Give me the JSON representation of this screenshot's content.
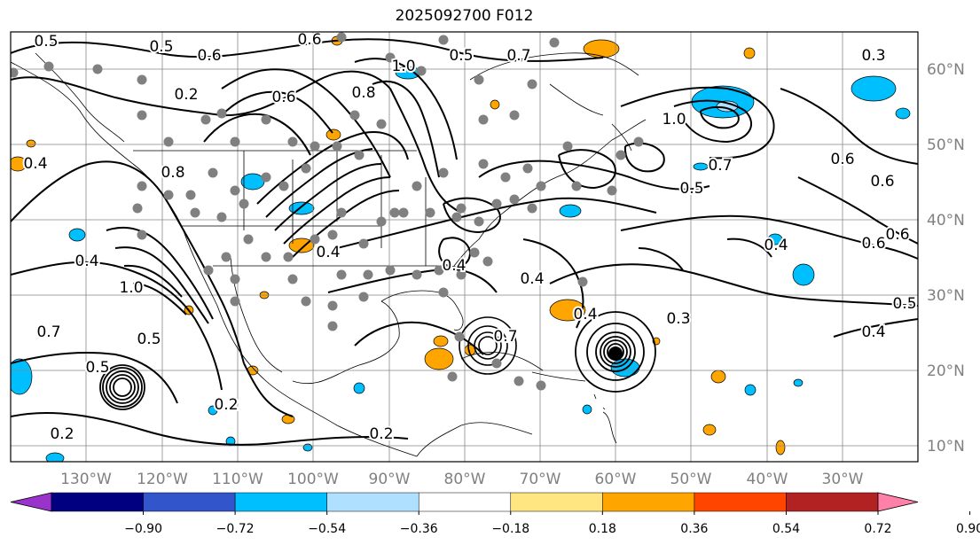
{
  "title": "2025092700 F012",
  "longitude_labels": [
    "130°W",
    "120°W",
    "110°W",
    "100°W",
    "90°W",
    "80°W",
    "70°W",
    "60°W",
    "50°W",
    "40°W",
    "30°W"
  ],
  "latitude_labels": [
    "60°N",
    "50°N",
    "40°N",
    "30°N",
    "20°N",
    "10°N"
  ],
  "colorbar": {
    "ticks": [
      "−0.90",
      "−0.72",
      "−0.54",
      "−0.36",
      "−0.18",
      "0.18",
      "0.36",
      "0.54",
      "0.72",
      "0.90"
    ],
    "colors": [
      "#9933cc",
      "#000080",
      "#3355cc",
      "#00bfff",
      "#b0e0ff",
      "#ffffff",
      "#ffe680",
      "#ffa500",
      "#ff4500",
      "#b22222",
      "#ff80a8"
    ]
  },
  "contour_labels": [
    {
      "t": "0.6"
    },
    {
      "t": "0.5"
    },
    {
      "t": "0.6"
    },
    {
      "t": "0.5"
    },
    {
      "t": "0.5"
    },
    {
      "t": "0.7"
    },
    {
      "t": "0.3"
    },
    {
      "t": "0.2"
    },
    {
      "t": "1.0"
    },
    {
      "t": "0.8"
    },
    {
      "t": "0.4"
    },
    {
      "t": "0.4"
    },
    {
      "t": "0.8"
    },
    {
      "t": "1.0"
    },
    {
      "t": "0.4"
    },
    {
      "t": "0.4"
    },
    {
      "t": "0.5"
    },
    {
      "t": "1.0"
    },
    {
      "t": "0.7"
    },
    {
      "t": "0.6"
    },
    {
      "t": "0.5"
    },
    {
      "t": "0.6"
    },
    {
      "t": "0.4"
    },
    {
      "t": "0.6"
    },
    {
      "t": "0.6"
    },
    {
      "t": "0.7"
    },
    {
      "t": "0.4"
    },
    {
      "t": "0.3"
    },
    {
      "t": "0.5"
    },
    {
      "t": "0.4"
    },
    {
      "t": "0.4"
    },
    {
      "t": "0.2"
    },
    {
      "t": "0.2"
    },
    {
      "t": "0.2"
    },
    {
      "t": "0.6"
    },
    {
      "t": "0.5"
    },
    {
      "t": "0.7"
    }
  ]
}
